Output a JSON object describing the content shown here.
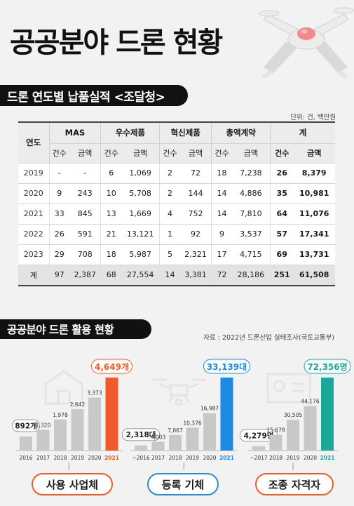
{
  "title": "공공분야 드론 현황",
  "section1": {
    "heading": "드론 연도별 납품실적 <조달청>",
    "unit": "단위: 건, 백만원",
    "header": {
      "year": "연도",
      "groups": [
        "MAS",
        "우수제품",
        "혁신제품",
        "총액계약",
        "계"
      ],
      "count": "건수",
      "amount": "금액"
    },
    "rows": [
      {
        "year": "2019",
        "cells": [
          "-",
          "-",
          "6",
          "1,069",
          "2",
          "72",
          "18",
          "7,238",
          "26",
          "8,379"
        ]
      },
      {
        "year": "2020",
        "cells": [
          "9",
          "243",
          "10",
          "5,708",
          "2",
          "144",
          "14",
          "4,886",
          "35",
          "10,981"
        ]
      },
      {
        "year": "2021",
        "cells": [
          "33",
          "845",
          "13",
          "1,669",
          "4",
          "752",
          "14",
          "7,810",
          "64",
          "11,076"
        ]
      },
      {
        "year": "2022",
        "cells": [
          "26",
          "591",
          "21",
          "13,121",
          "1",
          "92",
          "9",
          "3,537",
          "57",
          "17,341"
        ]
      },
      {
        "year": "2023",
        "cells": [
          "29",
          "708",
          "18",
          "5,987",
          "5",
          "2,321",
          "17",
          "4,715",
          "69",
          "13,731"
        ]
      }
    ],
    "total_row": {
      "year": "계",
      "cells": [
        "97",
        "2,387",
        "68",
        "27,554",
        "14",
        "3,381",
        "72",
        "28,186",
        "251",
        "61,508"
      ]
    }
  },
  "section2": {
    "heading": "공공분야 드론 활용 현황",
    "source": "자료 : 2022년 드론산업 실태조사(국토교통부)"
  },
  "colors": {
    "bar_gray": "#c8c8c8",
    "highlight_1": "#f15a2b",
    "highlight_2": "#1e88e5",
    "highlight_3": "#1ba89a",
    "icon_line": "#e4e4e4"
  },
  "chart_data": [
    {
      "type": "bar",
      "title": "사용 사업체",
      "categories": [
        "2016",
        "2017",
        "2018",
        "2019",
        "2020",
        "2021"
      ],
      "values": [
        892,
        1320,
        1978,
        2642,
        3373,
        4649
      ],
      "value_labels": [
        "892개",
        "1,320",
        "1,978",
        "2,642",
        "3,373",
        "4,649개"
      ],
      "highlight_index": 5,
      "icon": "factory-icon"
    },
    {
      "type": "bar",
      "title": "등록 기체",
      "categories": [
        "~2016",
        "2017",
        "2018",
        "2019",
        "2020",
        "2021"
      ],
      "values": [
        2318,
        4003,
        7067,
        10376,
        16987,
        33139
      ],
      "value_labels": [
        "2,318대",
        "4,003",
        "7,067",
        "10,376",
        "16,987",
        "33,139대"
      ],
      "highlight_index": 5,
      "icon": "drone-icon"
    },
    {
      "type": "bar",
      "title": "조종 자격자",
      "categories": [
        "~2017",
        "2018",
        "2019",
        "2020",
        "2021"
      ],
      "values": [
        4279,
        15678,
        30505,
        44176,
        72356
      ],
      "value_labels": [
        "4,279명",
        "15,678",
        "30,505",
        "44,176",
        "72,356명"
      ],
      "highlight_index": 4,
      "icon": "id-card-icon"
    }
  ]
}
